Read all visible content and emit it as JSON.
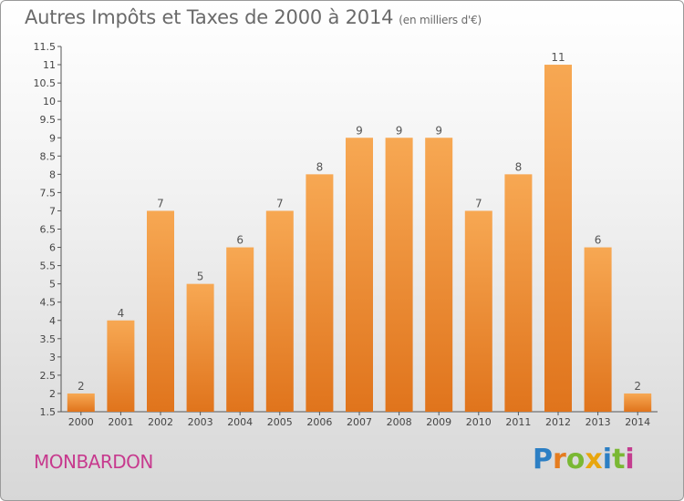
{
  "chart_data": {
    "type": "bar",
    "title": "Autres Impôts et Taxes de 2000 à 2014",
    "subtitle": "(en milliers d'€)",
    "categories": [
      "2000",
      "2001",
      "2002",
      "2003",
      "2004",
      "2005",
      "2006",
      "2007",
      "2008",
      "2009",
      "2010",
      "2011",
      "2012",
      "2013",
      "2014"
    ],
    "values": [
      2,
      4,
      7,
      5,
      6,
      7,
      8,
      9,
      9,
      9,
      7,
      8,
      11,
      6,
      2
    ],
    "ylim": [
      1.5,
      11.5
    ],
    "yticks": [
      "1.5",
      "2",
      "2.5",
      "3",
      "3.5",
      "4",
      "4.5",
      "5",
      "5.5",
      "6",
      "6.5",
      "7",
      "7.5",
      "8",
      "8.5",
      "9",
      "9.5",
      "10",
      "10.5",
      "11",
      "11.5"
    ],
    "grid": false,
    "bar_color": "#f08a2c"
  },
  "footer": {
    "place": "MONBARDON",
    "logo_letters": [
      "P",
      "r",
      "o",
      "x",
      "i",
      "t",
      "i"
    ],
    "logo_colors": [
      "#2c7fc4",
      "#e57c1f",
      "#7ab833",
      "#e8a60e",
      "#2c7fc4",
      "#7ab833",
      "#c43d8f"
    ]
  }
}
